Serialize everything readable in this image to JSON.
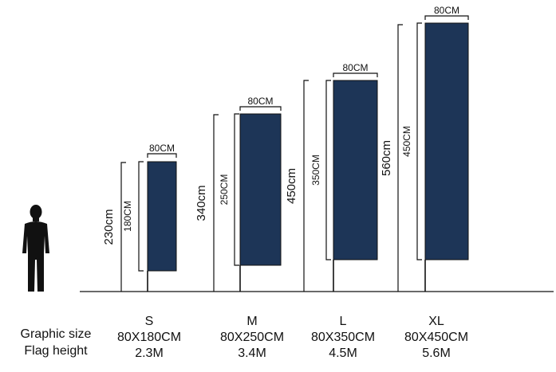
{
  "colors": {
    "flag": "#1d3557",
    "line": "#111111",
    "background": "#ffffff",
    "person": "#111111"
  },
  "row_labels": {
    "graphic_size": "Graphic size",
    "flag_height": "Flag height"
  },
  "flags": [
    {
      "size": "S",
      "width_label": "80CM",
      "graphic_label": "180CM",
      "height_label": "230cm",
      "graphic_size": "80X180CM",
      "flag_height": "2.3M"
    },
    {
      "size": "M",
      "width_label": "80CM",
      "graphic_label": "250CM",
      "height_label": "340cm",
      "graphic_size": "80X250CM",
      "flag_height": "3.4M"
    },
    {
      "size": "L",
      "width_label": "80CM",
      "graphic_label": "350CM",
      "height_label": "450cm",
      "graphic_size": "80X350CM",
      "flag_height": "4.5M"
    },
    {
      "size": "XL",
      "width_label": "80CM",
      "graphic_label": "450CM",
      "height_label": "560cm",
      "graphic_size": "80X450CM",
      "flag_height": "5.6M"
    }
  ]
}
